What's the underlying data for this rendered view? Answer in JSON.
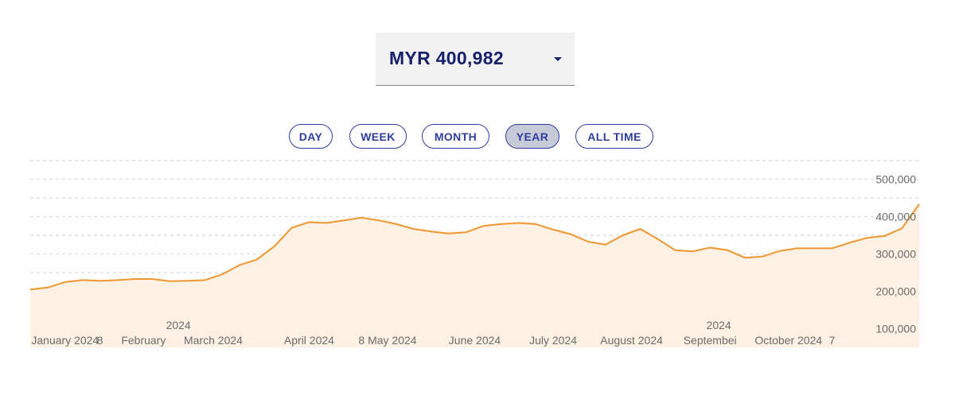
{
  "selector": {
    "value": "MYR 400,982",
    "caret_icon": "caret-down-icon"
  },
  "ranges": [
    {
      "label": "DAY",
      "active": false
    },
    {
      "label": "WEEK",
      "active": false
    },
    {
      "label": "MONTH",
      "active": false
    },
    {
      "label": "YEAR",
      "active": true
    },
    {
      "label": "ALL TIME",
      "active": false
    }
  ],
  "colors": {
    "line": "#f0962e",
    "area": "#fdf1e4",
    "title_text": "#16206b",
    "tab_text": "#2f3d9e",
    "tab_active_bg": "#c7cbd8",
    "axis_text": "#6b6b6b",
    "grid": "#e0e0e0"
  },
  "chart_data": {
    "type": "area",
    "y_ticks": [
      500000,
      400000,
      300000,
      200000,
      100000
    ],
    "y_tick_labels": [
      "500,000",
      "400,000",
      "300,000",
      "200,000",
      "100,000"
    ],
    "ylim": [
      50000,
      550000
    ],
    "grid": true,
    "x_tick_labels": [
      {
        "text": "January 2024",
        "x": 2
      },
      {
        "text": "8",
        "x": 4
      },
      {
        "text": "February",
        "x": 6.5
      },
      {
        "text": "March 2024",
        "x": 10.5
      },
      {
        "text": "April 2024",
        "x": 16
      },
      {
        "text": "8 May 2024",
        "x": 20.5
      },
      {
        "text": "June 2024",
        "x": 25.5
      },
      {
        "text": "July 2024",
        "x": 30
      },
      {
        "text": "August 2024",
        "x": 34.5
      },
      {
        "text": "Septembei",
        "x": 39
      },
      {
        "text": "October 2024",
        "x": 43.5
      },
      {
        "text": "7",
        "x": 46
      }
    ],
    "x_year_labels": [
      {
        "text": "2024",
        "x": 8.5
      },
      {
        "text": "2024",
        "x": 39.5
      }
    ],
    "x": [
      0,
      1,
      2,
      3,
      4,
      5,
      6,
      7,
      8,
      9,
      10,
      11,
      12,
      13,
      14,
      15,
      16,
      17,
      18,
      19,
      20,
      21,
      22,
      23,
      24,
      25,
      26,
      27,
      28,
      29,
      30,
      31,
      32,
      33,
      34,
      35,
      36,
      37,
      38,
      39,
      40,
      41,
      42,
      43,
      44,
      45,
      46,
      47,
      48,
      49,
      50,
      51
    ],
    "values": [
      205000,
      210000,
      225000,
      230000,
      228000,
      230000,
      233000,
      233000,
      227000,
      228000,
      230000,
      245000,
      270000,
      285000,
      320000,
      370000,
      385000,
      383000,
      390000,
      397000,
      390000,
      380000,
      367000,
      360000,
      355000,
      358000,
      375000,
      380000,
      383000,
      380000,
      365000,
      353000,
      333000,
      325000,
      350000,
      367000,
      340000,
      310000,
      307000,
      317000,
      310000,
      290000,
      293000,
      308000,
      315000,
      315000,
      315000,
      330000,
      343000,
      348000,
      368000,
      433000
    ]
  }
}
